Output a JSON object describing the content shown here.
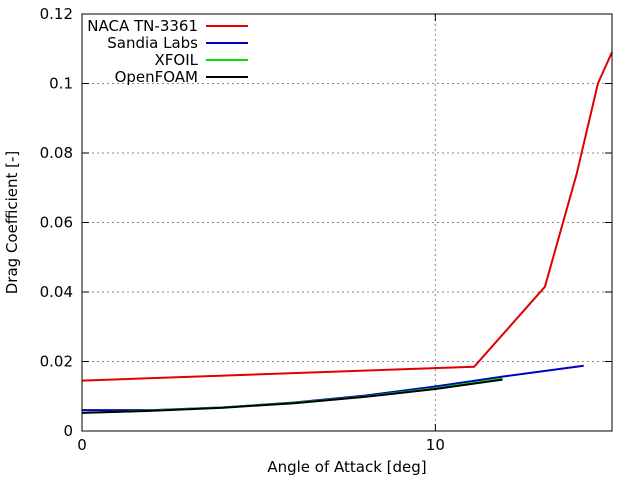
{
  "chart_data": {
    "type": "line",
    "title": "",
    "xlabel": "Angle of Attack [deg]",
    "ylabel": "Drag Coefficient [-]",
    "xlim": [
      0,
      15
    ],
    "ylim": [
      0,
      0.12
    ],
    "x_ticks": [
      {
        "value": 0,
        "label": "0"
      },
      {
        "value": 10,
        "label": "10"
      }
    ],
    "y_ticks": [
      {
        "value": 0,
        "label": "0"
      },
      {
        "value": 0.02,
        "label": "0.02"
      },
      {
        "value": 0.04,
        "label": "0.04"
      },
      {
        "value": 0.06,
        "label": "0.06"
      },
      {
        "value": 0.08,
        "label": "0.08"
      },
      {
        "value": 0.1,
        "label": "0.1"
      },
      {
        "value": 0.12,
        "label": "0.12"
      }
    ],
    "grid": true,
    "legend_position": "top-left",
    "series": [
      {
        "name": "NACA TN-3361",
        "color": "#e00000",
        "x": [
          0,
          11.1,
          13.1,
          14.0,
          14.6,
          15.0
        ],
        "y": [
          0.0145,
          0.0185,
          0.0415,
          0.074,
          0.1,
          0.109
        ]
      },
      {
        "name": "Sandia Labs",
        "color": "#0000c0",
        "x": [
          0,
          2,
          4,
          6,
          8,
          10,
          12,
          14.2
        ],
        "y": [
          0.006,
          0.006,
          0.0068,
          0.0082,
          0.0102,
          0.0128,
          0.0158,
          0.0188
        ]
      },
      {
        "name": "XFOIL",
        "color": "#00e000",
        "x": [
          0,
          2,
          4,
          6,
          8,
          10,
          11.9
        ],
        "y": [
          0.0052,
          0.0059,
          0.0068,
          0.0081,
          0.0099,
          0.0123,
          0.0151
        ]
      },
      {
        "name": "OpenFOAM",
        "color": "#000000",
        "x": [
          0,
          2,
          4,
          6,
          8,
          10,
          11.9
        ],
        "y": [
          0.0052,
          0.0058,
          0.0067,
          0.008,
          0.0098,
          0.0121,
          0.0148
        ]
      }
    ]
  }
}
